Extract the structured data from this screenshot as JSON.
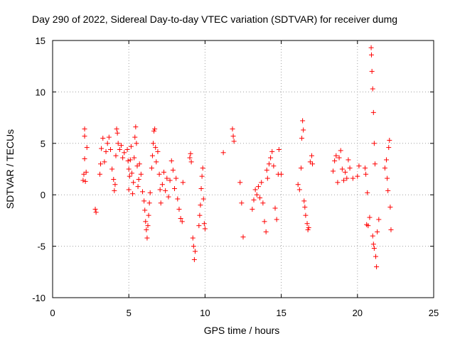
{
  "chart_data": {
    "type": "scatter",
    "title": "Day 290 of 2022, Sidereal Day-to-day VTEC variation (SDTVAR) for receiver dumg",
    "xlabel": "GPS time / hours",
    "ylabel": "SDTVAR / TECUs",
    "xlim": [
      0,
      25
    ],
    "ylim": [
      -10,
      15
    ],
    "xticks": [
      "0",
      "5",
      "10",
      "15",
      "20",
      "25"
    ],
    "yticks": [
      "-10",
      "-5",
      "0",
      "5",
      "10",
      "15"
    ],
    "grid": true,
    "marker": "plus",
    "colors": {
      "series": "#ff0000",
      "grid": "#a0a0a0",
      "axes": "#000000"
    },
    "series": [
      {
        "name": "SDTVAR",
        "points": [
          [
            2.0,
            1.4
          ],
          [
            2.05,
            2.0
          ],
          [
            2.1,
            3.5
          ],
          [
            2.1,
            5.7
          ],
          [
            2.1,
            6.4
          ],
          [
            2.15,
            1.3
          ],
          [
            2.2,
            2.2
          ],
          [
            2.25,
            4.6
          ],
          [
            2.8,
            -1.4
          ],
          [
            2.85,
            -1.7
          ],
          [
            3.1,
            2.0
          ],
          [
            3.15,
            3.0
          ],
          [
            3.2,
            4.5
          ],
          [
            3.3,
            5.5
          ],
          [
            3.4,
            3.2
          ],
          [
            3.5,
            4.2
          ],
          [
            3.6,
            5.0
          ],
          [
            3.7,
            5.6
          ],
          [
            3.8,
            4.4
          ],
          [
            3.9,
            2.5
          ],
          [
            4.0,
            1.5
          ],
          [
            4.05,
            0.4
          ],
          [
            4.1,
            1.0
          ],
          [
            4.15,
            3.8
          ],
          [
            4.2,
            6.4
          ],
          [
            4.25,
            6.0
          ],
          [
            4.3,
            5.0
          ],
          [
            4.4,
            4.4
          ],
          [
            4.5,
            4.8
          ],
          [
            4.6,
            3.6
          ],
          [
            4.7,
            4.1
          ],
          [
            4.9,
            4.4
          ],
          [
            4.95,
            3.3
          ],
          [
            5.0,
            2.5
          ],
          [
            5.0,
            0.5
          ],
          [
            5.05,
            1.8
          ],
          [
            5.1,
            3.4
          ],
          [
            5.15,
            4.7
          ],
          [
            5.2,
            2.1
          ],
          [
            5.25,
            0.1
          ],
          [
            5.3,
            1.2
          ],
          [
            5.35,
            3.6
          ],
          [
            5.4,
            5.6
          ],
          [
            5.45,
            6.6
          ],
          [
            5.5,
            5.0
          ],
          [
            5.55,
            2.8
          ],
          [
            5.6,
            0.8
          ],
          [
            5.65,
            1.5
          ],
          [
            5.7,
            3.0
          ],
          [
            5.8,
            2.0
          ],
          [
            5.9,
            0.3
          ],
          [
            6.0,
            -0.6
          ],
          [
            6.05,
            -1.5
          ],
          [
            6.1,
            -2.6
          ],
          [
            6.15,
            -3.4
          ],
          [
            6.2,
            -4.2
          ],
          [
            6.25,
            -3.0
          ],
          [
            6.3,
            -2.0
          ],
          [
            6.35,
            -0.8
          ],
          [
            6.4,
            0.2
          ],
          [
            6.5,
            2.6
          ],
          [
            6.55,
            3.8
          ],
          [
            6.6,
            5.0
          ],
          [
            6.65,
            6.2
          ],
          [
            6.7,
            6.4
          ],
          [
            6.75,
            4.6
          ],
          [
            6.8,
            3.2
          ],
          [
            6.9,
            4.2
          ],
          [
            7.0,
            2.0
          ],
          [
            7.05,
            0.5
          ],
          [
            7.1,
            -0.8
          ],
          [
            7.2,
            1.0
          ],
          [
            7.3,
            2.2
          ],
          [
            7.4,
            0.4
          ],
          [
            7.5,
            1.6
          ],
          [
            7.6,
            -0.2
          ],
          [
            7.7,
            1.4
          ],
          [
            7.8,
            3.3
          ],
          [
            7.9,
            2.4
          ],
          [
            8.0,
            0.6
          ],
          [
            8.1,
            1.6
          ],
          [
            8.2,
            -0.4
          ],
          [
            8.3,
            -1.4
          ],
          [
            8.4,
            -2.3
          ],
          [
            8.5,
            -2.6
          ],
          [
            8.55,
            1.2
          ],
          [
            9.0,
            3.6
          ],
          [
            9.05,
            4.0
          ],
          [
            9.1,
            3.2
          ],
          [
            9.2,
            -4.2
          ],
          [
            9.25,
            -5.0
          ],
          [
            9.3,
            -6.3
          ],
          [
            9.35,
            -5.5
          ],
          [
            9.6,
            -3.0
          ],
          [
            9.65,
            -2.0
          ],
          [
            9.7,
            -1.0
          ],
          [
            9.75,
            0.6
          ],
          [
            9.8,
            1.8
          ],
          [
            9.85,
            2.6
          ],
          [
            9.9,
            -0.4
          ],
          [
            9.95,
            -2.8
          ],
          [
            10.0,
            -3.3
          ],
          [
            11.2,
            4.1
          ],
          [
            11.8,
            6.4
          ],
          [
            11.85,
            5.7
          ],
          [
            11.9,
            5.2
          ],
          [
            12.3,
            1.2
          ],
          [
            12.4,
            -0.8
          ],
          [
            12.5,
            -4.1
          ],
          [
            13.1,
            -1.4
          ],
          [
            13.2,
            -0.5
          ],
          [
            13.3,
            0.5
          ],
          [
            13.4,
            0.0
          ],
          [
            13.5,
            0.8
          ],
          [
            13.6,
            -0.3
          ],
          [
            13.7,
            1.2
          ],
          [
            13.8,
            -0.8
          ],
          [
            13.9,
            -2.6
          ],
          [
            14.0,
            -3.6
          ],
          [
            14.05,
            2.4
          ],
          [
            14.1,
            1.6
          ],
          [
            14.2,
            3.0
          ],
          [
            14.3,
            3.6
          ],
          [
            14.4,
            4.2
          ],
          [
            14.5,
            2.8
          ],
          [
            14.6,
            -1.3
          ],
          [
            14.7,
            -2.4
          ],
          [
            14.8,
            2.0
          ],
          [
            14.85,
            4.4
          ],
          [
            15.0,
            2.0
          ],
          [
            16.1,
            1.0
          ],
          [
            16.2,
            0.5
          ],
          [
            16.3,
            2.6
          ],
          [
            16.35,
            5.5
          ],
          [
            16.4,
            7.2
          ],
          [
            16.45,
            6.3
          ],
          [
            16.5,
            -0.6
          ],
          [
            16.55,
            -1.2
          ],
          [
            16.6,
            -2.0
          ],
          [
            16.7,
            -2.8
          ],
          [
            16.75,
            -3.4
          ],
          [
            16.8,
            -3.2
          ],
          [
            16.9,
            3.2
          ],
          [
            17.0,
            3.8
          ],
          [
            17.05,
            3.0
          ],
          [
            18.4,
            2.3
          ],
          [
            18.5,
            3.3
          ],
          [
            18.6,
            3.8
          ],
          [
            18.7,
            1.2
          ],
          [
            18.8,
            3.6
          ],
          [
            18.9,
            4.3
          ],
          [
            19.0,
            2.5
          ],
          [
            19.1,
            1.4
          ],
          [
            19.2,
            2.2
          ],
          [
            19.3,
            1.6
          ],
          [
            19.4,
            3.4
          ],
          [
            19.5,
            2.6
          ],
          [
            19.7,
            1.6
          ],
          [
            20.0,
            1.8
          ],
          [
            20.1,
            2.8
          ],
          [
            20.5,
            2.6
          ],
          [
            20.55,
            2.0
          ],
          [
            20.6,
            -2.9
          ],
          [
            20.65,
            0.2
          ],
          [
            20.7,
            -3.0
          ],
          [
            20.8,
            -2.2
          ],
          [
            20.9,
            14.3
          ],
          [
            20.92,
            13.6
          ],
          [
            20.95,
            12.0
          ],
          [
            21.0,
            10.3
          ],
          [
            21.05,
            8.0
          ],
          [
            21.1,
            5.0
          ],
          [
            21.15,
            3.0
          ],
          [
            21.0,
            -4.0
          ],
          [
            21.05,
            -4.8
          ],
          [
            21.1,
            -5.2
          ],
          [
            21.2,
            -6.0
          ],
          [
            21.25,
            -7.0
          ],
          [
            21.3,
            -3.6
          ],
          [
            21.4,
            -2.4
          ],
          [
            21.8,
            2.6
          ],
          [
            21.9,
            3.4
          ],
          [
            21.95,
            1.6
          ],
          [
            22.0,
            0.4
          ],
          [
            22.05,
            4.6
          ],
          [
            22.1,
            5.3
          ],
          [
            22.15,
            -1.2
          ],
          [
            22.2,
            -3.4
          ]
        ]
      }
    ]
  }
}
